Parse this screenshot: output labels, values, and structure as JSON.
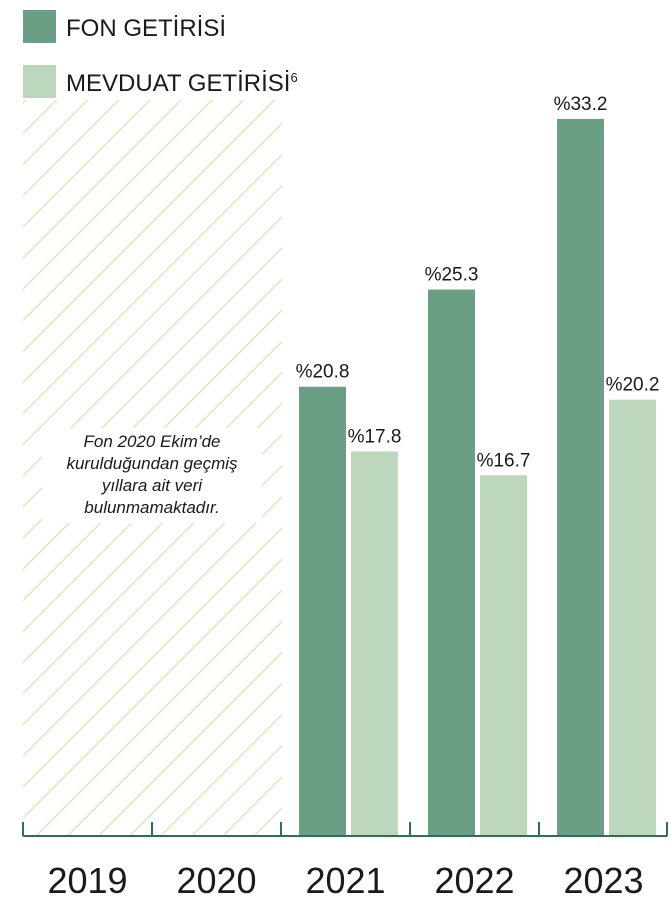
{
  "chart_data": {
    "type": "bar",
    "categories": [
      "2019",
      "2020",
      "2021",
      "2022",
      "2023"
    ],
    "series": [
      {
        "name": "FON GETİRİSİ",
        "values": [
          null,
          null,
          20.8,
          25.3,
          33.2
        ],
        "labels": [
          null,
          null,
          "%20.8",
          "%25.3",
          "%33.2"
        ]
      },
      {
        "name": "MEVDUAT GETİRİSİ",
        "values": [
          null,
          null,
          17.8,
          16.7,
          20.2
        ],
        "labels": [
          null,
          null,
          "%17.8",
          "%16.7",
          "%20.2"
        ]
      }
    ],
    "legend": {
      "position": "top-left",
      "items": [
        {
          "label": "FON GETİRİSİ",
          "sup": ""
        },
        {
          "label": "MEVDUAT GETİRİSİ",
          "sup": "6"
        }
      ]
    },
    "grid": false,
    "no_data_note": "Fon 2020 Ekim’de kurulduğundan geçmiş yıllara ait veri bulunmamaktadır.",
    "no_data_categories": [
      "2019",
      "2020"
    ]
  },
  "colors": {
    "fund": "#6a9f86",
    "deposit": "#bcd7bb",
    "hatch": "#dde9b6",
    "axis": "#2f6e58",
    "text": "#1a1a1a"
  }
}
